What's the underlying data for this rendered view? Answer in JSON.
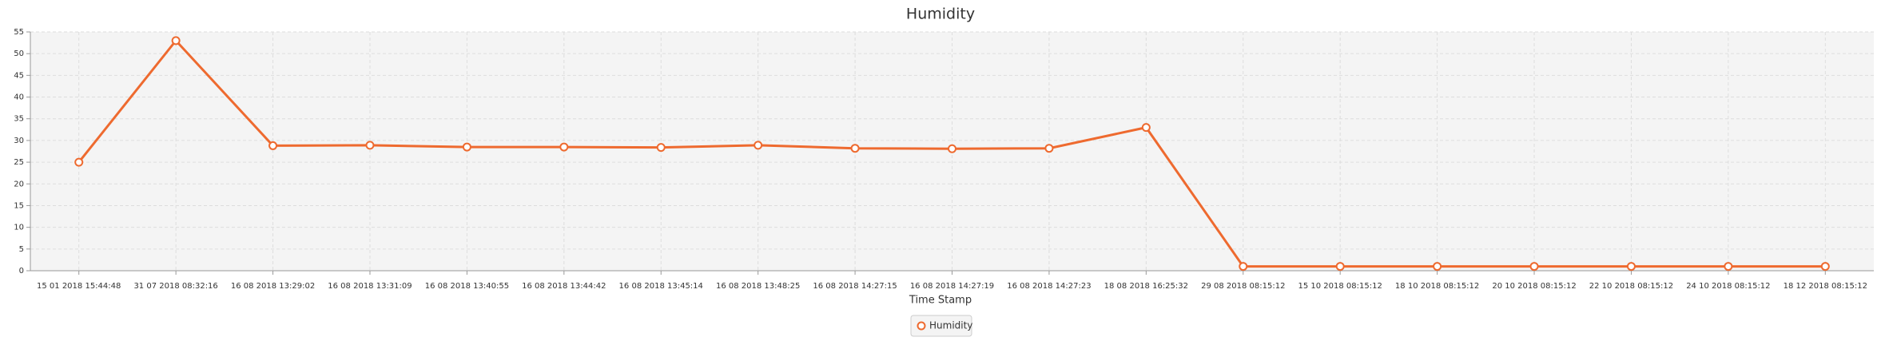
{
  "chart_data": {
    "type": "line",
    "title": "Humidity",
    "x_label": "Time Stamp",
    "categories": [
      "15 01 2018 15:44:48",
      "31 07 2018 08:32:16",
      "16 08 2018 13:29:02",
      "16 08 2018 13:31:09",
      "16 08 2018 13:40:55",
      "16 08 2018 13:44:42",
      "16 08 2018 13:45:14",
      "16 08 2018 13:48:25",
      "16 08 2018 14:27:15",
      "16 08 2018 14:27:19",
      "16 08 2018 14:27:23",
      "18 08 2018 16:25:32",
      "29 08 2018 08:15:12",
      "15 10 2018 08:15:12",
      "18 10 2018 08:15:12",
      "20 10 2018 08:15:12",
      "22 10 2018 08:15:12",
      "24 10 2018 08:15:12",
      "18 12 2018 08:15:12"
    ],
    "series": [
      {
        "name": "Humidity",
        "color": "#ee6a2f",
        "values": [
          25,
          53,
          28.8,
          28.9,
          28.5,
          28.5,
          28.4,
          28.9,
          28.2,
          28.1,
          28.2,
          33,
          1,
          1,
          1,
          1,
          1,
          1,
          1
        ]
      }
    ],
    "ylim": [
      0,
      55
    ],
    "yticks": [
      0,
      5,
      10,
      15,
      20,
      25,
      30,
      35,
      40,
      45,
      50,
      55
    ],
    "grid": true
  }
}
